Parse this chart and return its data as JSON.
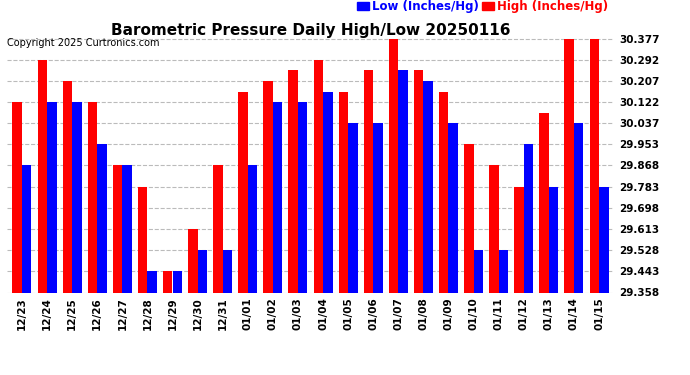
{
  "title": "Barometric Pressure Daily High/Low 20250116",
  "copyright": "Copyright 2025 Curtronics.com",
  "legend_low": "Low (Inches/Hg)",
  "legend_high": "High (Inches/Hg)",
  "dates": [
    "12/23",
    "12/24",
    "12/25",
    "12/26",
    "12/27",
    "12/28",
    "12/29",
    "12/30",
    "12/31",
    "01/01",
    "01/02",
    "01/03",
    "01/04",
    "01/05",
    "01/06",
    "01/07",
    "01/08",
    "01/09",
    "01/10",
    "01/11",
    "01/12",
    "01/13",
    "01/14",
    "01/15"
  ],
  "high_values": [
    30.122,
    30.292,
    30.207,
    30.122,
    29.868,
    29.783,
    29.443,
    29.613,
    29.868,
    30.165,
    30.207,
    30.25,
    30.292,
    30.165,
    30.25,
    30.377,
    30.25,
    30.165,
    29.953,
    29.868,
    29.783,
    30.08,
    30.377,
    30.377
  ],
  "low_values": [
    29.868,
    30.122,
    30.122,
    29.953,
    29.868,
    29.443,
    29.443,
    29.528,
    29.528,
    29.868,
    30.122,
    30.122,
    30.165,
    30.037,
    30.037,
    30.25,
    30.207,
    30.037,
    29.528,
    29.528,
    29.953,
    29.783,
    30.037,
    29.783
  ],
  "ymin": 29.358,
  "ymax": 30.377,
  "yticks": [
    29.358,
    29.443,
    29.528,
    29.613,
    29.698,
    29.783,
    29.868,
    29.953,
    30.037,
    30.122,
    30.207,
    30.292,
    30.377
  ],
  "bar_width": 0.38,
  "high_color": "#ff0000",
  "low_color": "#0000ff",
  "background_color": "#ffffff",
  "grid_color": "#bbbbbb",
  "title_fontsize": 11,
  "tick_fontsize": 7.5,
  "legend_fontsize": 8.5,
  "copyright_fontsize": 7
}
